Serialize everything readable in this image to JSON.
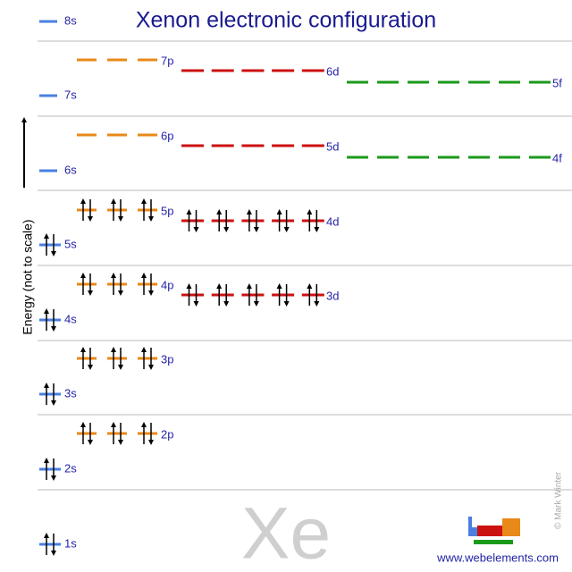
{
  "title": "Xenon electronic configuration",
  "axis_label": "Energy (not to scale)",
  "orbitals": [
    "1s",
    "2s",
    "2p",
    "3s",
    "3p",
    "3d",
    "4s",
    "4p",
    "4d",
    "4f",
    "5s",
    "5p",
    "5d",
    "5f",
    "6s",
    "6p",
    "6d",
    "7s",
    "7p",
    "8s"
  ],
  "symbol": "Xe",
  "credit": "© Mark Winter",
  "url": "www.webelements.com"
}
